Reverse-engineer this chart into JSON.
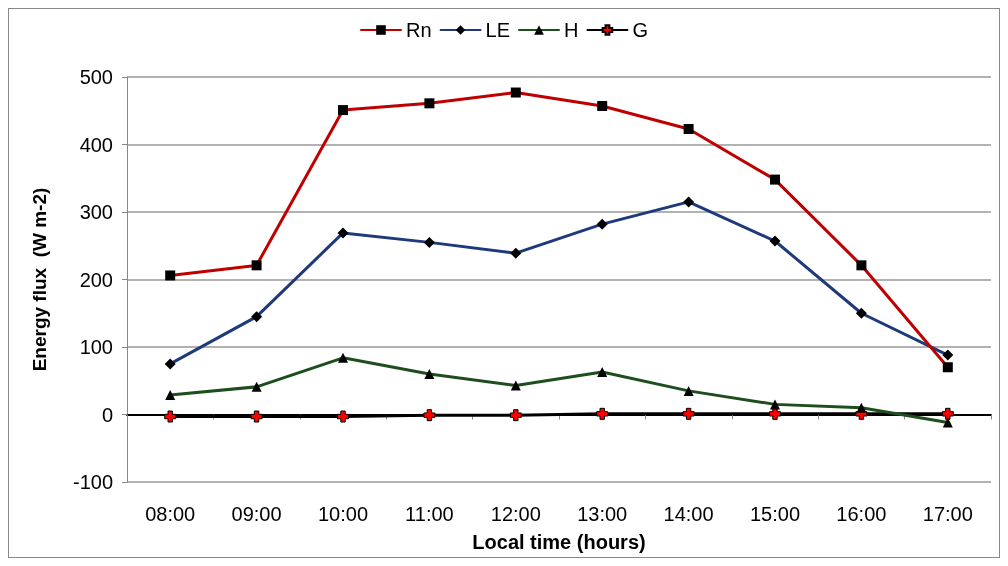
{
  "chart_data": {
    "type": "line",
    "xlabel": "Local time (hours)",
    "ylabel": "Energy flux  (W m-2)",
    "categories": [
      "08:00",
      "09:00",
      "10:00",
      "11:00",
      "12:00",
      "13:00",
      "14:00",
      "15:00",
      "16:00",
      "17:00"
    ],
    "series": [
      {
        "name": "Rn",
        "color": "#c00000",
        "marker": "square",
        "values": [
          206,
          221,
          451,
          461,
          477,
          457,
          423,
          348,
          221,
          70
        ]
      },
      {
        "name": "LE",
        "color": "#1f3a7a",
        "marker": "diamond",
        "values": [
          75,
          145,
          269,
          255,
          239,
          282,
          315,
          257,
          150,
          88
        ]
      },
      {
        "name": "H",
        "color": "#1e4d1e",
        "marker": "triangle",
        "values": [
          29,
          41,
          84,
          60,
          43,
          63,
          35,
          15,
          10,
          -12
        ]
      },
      {
        "name": "G",
        "color": "#000000",
        "marker": "cross",
        "values": [
          -3,
          -3,
          -3,
          -1,
          -1,
          1,
          1,
          1,
          1,
          1
        ]
      }
    ],
    "ylim": [
      -100,
      500
    ],
    "yticks": [
      -100,
      0,
      100,
      200,
      300,
      400,
      500
    ],
    "grid": "y",
    "legend": "top",
    "line_style": "solid"
  }
}
